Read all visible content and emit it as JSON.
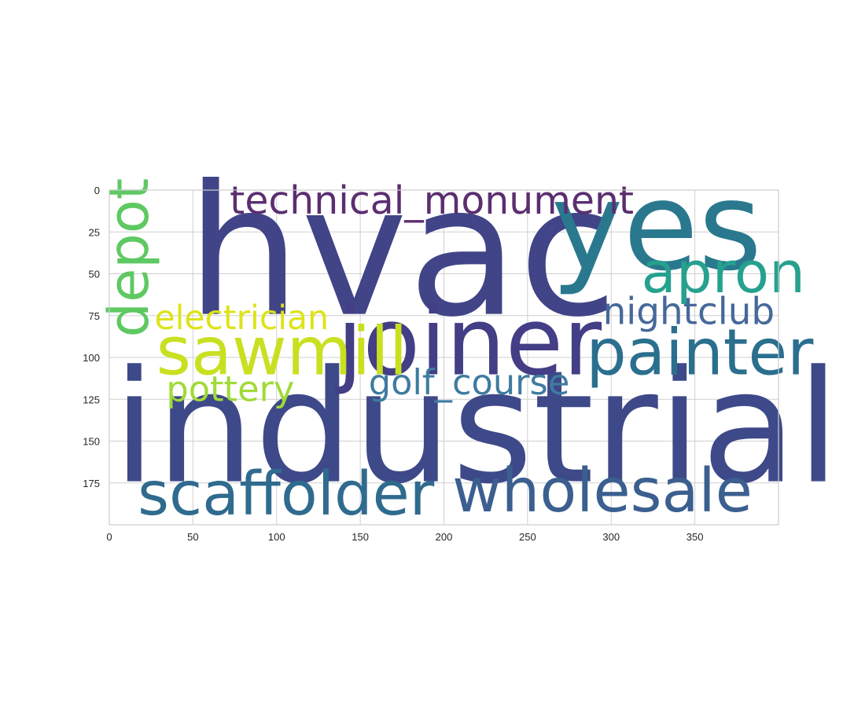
{
  "chart_data": {
    "type": "wordcloud",
    "title": "",
    "xlabel": "",
    "ylabel": "",
    "xlim": [
      0,
      400
    ],
    "ylim": [
      200,
      0
    ],
    "xticks": [
      0,
      50,
      100,
      150,
      200,
      250,
      300,
      350
    ],
    "yticks": [
      0,
      25,
      50,
      75,
      100,
      125,
      150,
      175
    ],
    "grid": true,
    "colormap": "viridis",
    "words": [
      {
        "text": "hvac",
        "x": 46,
        "y": 74,
        "size": 108,
        "rotate": 0,
        "color": "#414487"
      },
      {
        "text": "yes",
        "x": 264,
        "y": 47,
        "size": 73,
        "rotate": 0,
        "color": "#2a788e"
      },
      {
        "text": "industrial",
        "x": 2,
        "y": 174,
        "size": 93,
        "rotate": 0,
        "color": "#3e4989"
      },
      {
        "text": "joiner",
        "x": 136,
        "y": 110,
        "size": 56,
        "rotate": 0,
        "color": "#433e85"
      },
      {
        "text": "technical_monument",
        "x": 72,
        "y": 14,
        "size": 23,
        "rotate": 0,
        "color": "#5b2e70"
      },
      {
        "text": "apron",
        "x": 318,
        "y": 61,
        "size": 34,
        "rotate": 0,
        "color": "#25a18e"
      },
      {
        "text": "depot",
        "x": 23,
        "y": 88,
        "size": 33,
        "rotate": -90,
        "color": "#5ec962"
      },
      {
        "text": "electrician",
        "x": 27,
        "y": 83,
        "size": 20,
        "rotate": 0,
        "color": "#dde318"
      },
      {
        "text": "nightclub",
        "x": 295,
        "y": 80,
        "size": 22,
        "rotate": 0,
        "color": "#46689a"
      },
      {
        "text": "sawmill",
        "x": 28,
        "y": 110,
        "size": 40,
        "rotate": 0,
        "color": "#c8e020"
      },
      {
        "text": "painter",
        "x": 285,
        "y": 110,
        "size": 38,
        "rotate": 0,
        "color": "#2a6f8e"
      },
      {
        "text": "pottery",
        "x": 34,
        "y": 126,
        "size": 21,
        "rotate": 0,
        "color": "#a0da39"
      },
      {
        "text": "golf_course",
        "x": 155,
        "y": 122,
        "size": 21,
        "rotate": 0,
        "color": "#3f7ba0"
      },
      {
        "text": "scaffolder",
        "x": 17,
        "y": 194,
        "size": 36,
        "rotate": 0,
        "color": "#2f6b8e"
      },
      {
        "text": "wholesale",
        "x": 205,
        "y": 192,
        "size": 36,
        "rotate": 0,
        "color": "#3b5f8f"
      }
    ]
  }
}
